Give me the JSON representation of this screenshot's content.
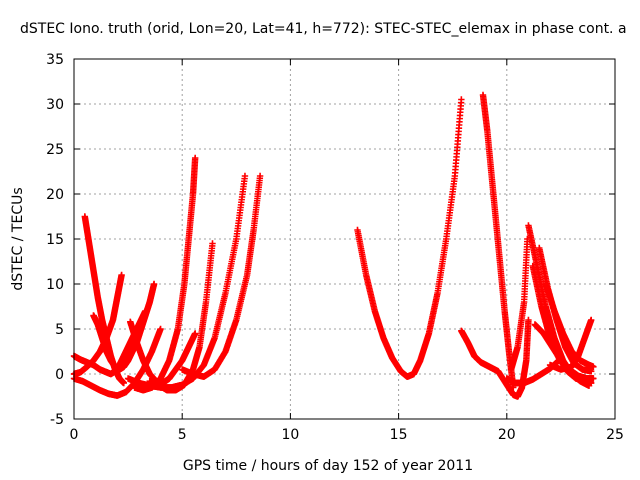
{
  "chart_data": {
    "type": "scatter",
    "title": "dSTEC Iono. truth (orid, Lon=20, Lat=41, h=772): STEC-STEC_elemax in phase cont. a",
    "xlabel": "GPS time / hours of day 152 of year 2011",
    "ylabel": "dSTEC  / TECUs",
    "xlim": [
      0,
      25
    ],
    "ylim": [
      -5,
      35
    ],
    "xticks": [
      0,
      5,
      10,
      15,
      20,
      25
    ],
    "yticks": [
      -5,
      0,
      5,
      10,
      15,
      20,
      25,
      30,
      35
    ],
    "grid": true,
    "marker": "+",
    "color": "#ff0000",
    "series": [
      {
        "x": [
          0.5,
          0.7,
          0.9,
          1.1,
          1.3,
          1.5,
          1.7,
          1.9,
          2.1,
          2.3
        ],
        "y": [
          17.5,
          14.5,
          11.5,
          8.5,
          6.0,
          4.0,
          2.0,
          0.5,
          -0.5,
          -1.0
        ]
      },
      {
        "x": [
          0.0,
          0.3,
          0.6,
          0.9,
          1.2,
          1.5,
          1.7,
          1.9,
          2.1,
          2.3,
          2.5,
          2.7,
          2.9,
          3.1,
          3.3
        ],
        "y": [
          2.0,
          1.6,
          1.3,
          1.0,
          0.5,
          0.2,
          0.0,
          0.3,
          1.0,
          2.0,
          3.0,
          4.0,
          5.0,
          6.0,
          7.0
        ]
      },
      {
        "x": [
          0.9,
          1.1,
          1.3,
          1.5,
          1.7,
          1.9,
          2.1,
          2.3,
          2.5,
          2.7,
          2.9,
          3.1,
          3.3,
          3.5,
          3.7
        ],
        "y": [
          6.5,
          5.5,
          4.0,
          2.5,
          1.5,
          0.8,
          0.5,
          0.8,
          1.5,
          2.5,
          3.5,
          5.0,
          6.5,
          8.0,
          10.0
        ]
      },
      {
        "x": [
          0.0,
          0.3,
          0.6,
          0.9,
          1.2,
          1.5,
          1.8,
          2.0,
          2.2
        ],
        "y": [
          0.0,
          0.2,
          0.8,
          1.5,
          2.5,
          4.0,
          6.0,
          8.5,
          11.0
        ]
      },
      {
        "x": [
          0.0,
          0.4,
          0.8,
          1.2,
          1.6,
          2.0,
          2.4,
          2.8,
          3.2,
          3.6,
          4.0
        ],
        "y": [
          -0.5,
          -0.8,
          -1.3,
          -1.8,
          -2.2,
          -2.4,
          -2.0,
          -1.0,
          0.5,
          2.5,
          5.0
        ]
      },
      {
        "x": [
          2.6,
          2.9,
          3.2,
          3.5,
          3.8,
          4.1,
          4.4,
          4.7,
          5.0,
          5.3,
          5.6
        ],
        "y": [
          5.8,
          3.5,
          1.5,
          0.0,
          -0.8,
          -1.0,
          -0.5,
          0.5,
          1.5,
          3.0,
          4.5
        ]
      },
      {
        "x": [
          2.8,
          3.2,
          3.6,
          4.0,
          4.4,
          4.8,
          5.1,
          5.3,
          5.5,
          5.6
        ],
        "y": [
          -1.5,
          -1.8,
          -1.5,
          -0.5,
          1.5,
          5.0,
          10.0,
          15.0,
          20.0,
          24.0
        ]
      },
      {
        "x": [
          2.5,
          3.0,
          3.5,
          4.0,
          4.5,
          5.0,
          5.5,
          6.0,
          6.5,
          7.0,
          7.5,
          7.9
        ],
        "y": [
          -0.5,
          -1.0,
          -1.3,
          -1.5,
          -1.5,
          -1.2,
          -0.5,
          1.0,
          4.0,
          9.0,
          15.0,
          22.0
        ]
      },
      {
        "x": [
          3.5,
          3.9,
          4.3,
          4.7,
          5.1,
          5.5,
          5.8,
          6.1,
          6.4
        ],
        "y": [
          -0.8,
          -1.2,
          -1.8,
          -1.8,
          -1.2,
          0.5,
          3.0,
          8.0,
          14.5
        ]
      },
      {
        "x": [
          5.0,
          5.5,
          6.0,
          6.5,
          7.0,
          7.5,
          8.0,
          8.3,
          8.6
        ],
        "y": [
          0.5,
          0.0,
          -0.3,
          0.5,
          2.5,
          6.0,
          11.0,
          16.0,
          22.0
        ]
      },
      {
        "x": [
          13.1,
          13.5,
          13.9,
          14.3,
          14.7,
          15.1,
          15.4,
          15.7,
          16.0,
          16.4,
          16.8,
          17.2,
          17.6,
          17.9
        ],
        "y": [
          16.0,
          11.0,
          7.0,
          4.0,
          1.8,
          0.3,
          -0.3,
          0.0,
          1.5,
          4.5,
          9.0,
          15.0,
          22.0,
          30.5
        ]
      },
      {
        "x": [
          17.9,
          18.2,
          18.5,
          18.8,
          19.2,
          19.6,
          20.0,
          20.3,
          20.5,
          20.7,
          20.9,
          21.0
        ],
        "y": [
          4.8,
          3.5,
          2.0,
          1.3,
          0.8,
          0.3,
          -1.2,
          -2.3,
          -2.5,
          -1.5,
          1.5,
          6.0
        ]
      },
      {
        "x": [
          18.9,
          19.1,
          19.3,
          19.5,
          19.7,
          19.9,
          20.1,
          20.3
        ],
        "y": [
          31.0,
          27.0,
          22.0,
          17.0,
          12.0,
          7.0,
          2.5,
          -1.5
        ]
      },
      {
        "x": [
          20.2,
          20.5,
          20.8,
          20.95
        ],
        "y": [
          0.5,
          3.0,
          8.0,
          15.0
        ]
      },
      {
        "x": [
          21.0,
          21.4,
          21.8,
          22.2,
          22.6,
          23.0,
          23.4,
          23.8
        ],
        "y": [
          16.5,
          12.0,
          7.5,
          4.0,
          1.5,
          0.0,
          -0.8,
          -1.3
        ]
      },
      {
        "x": [
          21.2,
          21.6,
          22.0,
          22.4,
          22.8,
          23.2,
          23.6,
          23.9
        ],
        "y": [
          12.0,
          7.5,
          4.0,
          1.8,
          0.3,
          -0.5,
          -0.8,
          -1.0
        ]
      },
      {
        "x": [
          21.5,
          21.9,
          22.3,
          22.7,
          23.1,
          23.5,
          23.9
        ],
        "y": [
          14.0,
          9.5,
          6.0,
          3.0,
          1.2,
          0.5,
          0.3
        ]
      },
      {
        "x": [
          21.8,
          22.2,
          22.6,
          23.0,
          23.4,
          23.8,
          24.0
        ],
        "y": [
          10.0,
          7.0,
          4.5,
          2.5,
          1.5,
          1.0,
          0.8
        ]
      },
      {
        "x": [
          21.3,
          21.7,
          22.1,
          22.5,
          22.9,
          23.3,
          23.7,
          24.0
        ],
        "y": [
          5.5,
          4.5,
          3.0,
          1.5,
          0.5,
          -0.2,
          -0.5,
          -0.5
        ]
      },
      {
        "x": [
          22.0,
          22.5,
          23.0,
          23.3,
          23.6,
          23.9
        ],
        "y": [
          1.0,
          0.5,
          0.8,
          2.0,
          4.0,
          6.0
        ]
      },
      {
        "x": [
          20.0,
          20.4,
          20.8,
          21.2,
          21.6,
          22.0,
          22.4
        ],
        "y": [
          -0.5,
          -1.0,
          -1.0,
          -0.6,
          0.0,
          0.6,
          1.5
        ]
      }
    ]
  }
}
